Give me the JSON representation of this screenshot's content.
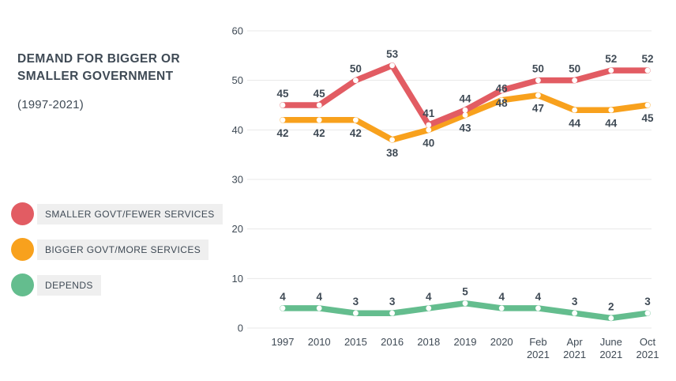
{
  "title": "DEMAND FOR BIGGER OR SMALLER GOVERNMENT",
  "subtitle": "(1997-2021)",
  "colors": {
    "text": "#3f4a55",
    "grid": "#e8e8e8",
    "legend_label_bg": "#efefef",
    "red": "#e25c63",
    "orange": "#f8a11d",
    "green": "#64bd8e"
  },
  "legend": {
    "position": "left",
    "items": [
      {
        "label": "SMALLER GOVT/FEWER SERVICES",
        "color": "#e25c63",
        "swatch": "circle"
      },
      {
        "label": "BIGGER GOVT/MORE SERVICES",
        "color": "#f8a11d",
        "swatch": "circle"
      },
      {
        "label": "DEPENDS",
        "color": "#64bd8e",
        "swatch": "circle"
      }
    ]
  },
  "chart_data": {
    "type": "line",
    "title": "DEMAND FOR BIGGER OR SMALLER GOVERNMENT (1997-2021)",
    "x": [
      "1997",
      "2010",
      "2015",
      "2016",
      "2018",
      "2019",
      "2020",
      "Feb 2021",
      "Apr 2021",
      "June 2021",
      "Oct 2021"
    ],
    "series": [
      {
        "name": "SMALLER GOVT/FEWER SERVICES",
        "color": "#e25c63",
        "values": [
          45,
          45,
          50,
          53,
          41,
          44,
          48,
          50,
          50,
          52,
          52
        ],
        "label_position": "above"
      },
      {
        "name": "BIGGER GOVT/MORE SERVICES",
        "color": "#f8a11d",
        "values": [
          42,
          42,
          42,
          38,
          40,
          43,
          46,
          47,
          44,
          44,
          45
        ],
        "label_position": "below"
      },
      {
        "name": "DEPENDS",
        "color": "#64bd8e",
        "values": [
          4,
          4,
          3,
          3,
          4,
          5,
          4,
          4,
          3,
          2,
          3
        ],
        "label_position": "above"
      }
    ],
    "label_position_overrides": [
      {
        "series": 0,
        "index": 6,
        "position": "below"
      },
      {
        "series": 1,
        "index": 6,
        "position": "above"
      }
    ],
    "xlabel": "",
    "ylabel": "",
    "ylim": [
      0,
      60
    ],
    "yticks": [
      0,
      10,
      20,
      30,
      40,
      50,
      60
    ],
    "grid": true,
    "grid_axis": "y",
    "legend_position": "left",
    "point_markers": "white-dots",
    "draw_order": [
      1,
      0,
      2
    ]
  }
}
